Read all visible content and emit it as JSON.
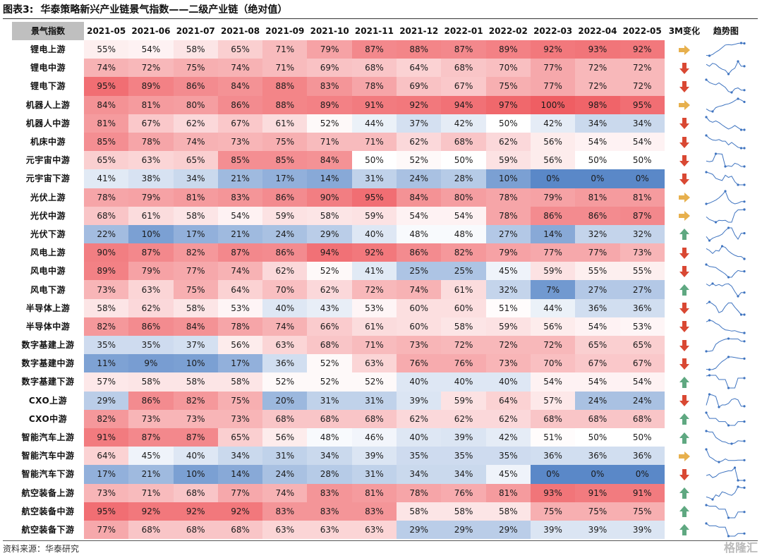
{
  "title": {
    "figure_label": "图表3:",
    "text": "华泰策略新兴产业链景气指数——二级产业链（绝对值）"
  },
  "source_text": "资料来源：华泰研究",
  "watermark": "格隆汇",
  "colors": {
    "high": "#ef5e63",
    "mid": "#ffffff",
    "low": "#5a88c8",
    "arrow_up": "#5fa881",
    "arrow_down": "#d94833",
    "arrow_flat": "#e7b04d",
    "trend_line": "#3f74c0"
  },
  "chart_data": {
    "type": "heatmap",
    "header": {
      "category": "景气指数",
      "change": "3M变化",
      "trend": "趋势图"
    },
    "columns": [
      "2021-05",
      "2021-06",
      "2021-07",
      "2021-08",
      "2021-09",
      "2021-10",
      "2021-11",
      "2021-12",
      "2022-01",
      "2022-02",
      "2022-03",
      "2022-04",
      "2022-05"
    ],
    "rows": [
      {
        "name": "锂电上游",
        "values": [
          55,
          54,
          58,
          65,
          71,
          79,
          87,
          88,
          87,
          89,
          92,
          93,
          92
        ],
        "change": "flat"
      },
      {
        "name": "锂电中游",
        "values": [
          74,
          72,
          75,
          74,
          71,
          69,
          68,
          64,
          68,
          70,
          77,
          72,
          72
        ],
        "change": "down"
      },
      {
        "name": "锂电下游",
        "values": [
          95,
          89,
          86,
          84,
          88,
          83,
          78,
          69,
          67,
          75,
          77,
          72,
          72
        ],
        "change": "down"
      },
      {
        "name": "机器人上游",
        "values": [
          84,
          81,
          80,
          86,
          88,
          89,
          91,
          92,
          94,
          97,
          100,
          98,
          95
        ],
        "change": "flat"
      },
      {
        "name": "机器人中游",
        "values": [
          81,
          67,
          62,
          67,
          61,
          52,
          44,
          37,
          42,
          50,
          42,
          34,
          34
        ],
        "change": "down"
      },
      {
        "name": "机床中游",
        "values": [
          85,
          78,
          74,
          73,
          75,
          71,
          71,
          62,
          68,
          62,
          56,
          54,
          54
        ],
        "change": "down"
      },
      {
        "name": "元宇宙中游",
        "values": [
          65,
          63,
          65,
          85,
          85,
          84,
          50,
          52,
          50,
          59,
          56,
          50,
          50
        ],
        "change": "down"
      },
      {
        "name": "元宇宙下游",
        "values": [
          41,
          38,
          34,
          21,
          17,
          14,
          31,
          24,
          28,
          10,
          0,
          0,
          0
        ],
        "change": "down"
      },
      {
        "name": "光伏上游",
        "values": [
          78,
          79,
          81,
          83,
          86,
          90,
          95,
          84,
          80,
          78,
          79,
          81,
          81
        ],
        "change": "flat"
      },
      {
        "name": "光伏中游",
        "values": [
          68,
          61,
          58,
          54,
          59,
          58,
          59,
          54,
          54,
          78,
          86,
          86,
          87
        ],
        "change": "flat"
      },
      {
        "name": "光伏下游",
        "values": [
          22,
          10,
          17,
          21,
          24,
          29,
          40,
          48,
          48,
          27,
          14,
          32,
          32
        ],
        "change": "up"
      },
      {
        "name": "风电上游",
        "values": [
          90,
          87,
          82,
          87,
          86,
          94,
          92,
          86,
          82,
          79,
          77,
          77,
          73
        ],
        "change": "down"
      },
      {
        "name": "风电中游",
        "values": [
          89,
          79,
          77,
          74,
          62,
          52,
          41,
          25,
          25,
          45,
          59,
          55,
          55
        ],
        "change": "down"
      },
      {
        "name": "风电下游",
        "values": [
          73,
          63,
          75,
          64,
          70,
          62,
          72,
          74,
          61,
          32,
          7,
          27,
          27
        ],
        "change": "up"
      },
      {
        "name": "半导体上游",
        "values": [
          58,
          62,
          58,
          53,
          40,
          43,
          53,
          60,
          60,
          51,
          44,
          36,
          36
        ],
        "change": "down"
      },
      {
        "name": "半导体中游",
        "values": [
          82,
          86,
          84,
          78,
          74,
          66,
          61,
          60,
          58,
          59,
          56,
          54,
          53
        ],
        "change": "down"
      },
      {
        "name": "数字基建上游",
        "values": [
          35,
          35,
          37,
          56,
          63,
          68,
          71,
          73,
          72,
          72,
          72,
          65,
          65
        ],
        "change": "down"
      },
      {
        "name": "数字基建中游",
        "values": [
          11,
          9,
          10,
          17,
          36,
          52,
          63,
          76,
          76,
          73,
          70,
          67,
          67
        ],
        "change": "down"
      },
      {
        "name": "数字基建下游",
        "values": [
          57,
          58,
          58,
          58,
          52,
          52,
          52,
          40,
          40,
          40,
          54,
          54,
          54
        ],
        "change": "up"
      },
      {
        "name": "CXO上游",
        "values": [
          29,
          86,
          82,
          75,
          20,
          31,
          31,
          39,
          59,
          64,
          57,
          24,
          24
        ],
        "change": "down"
      },
      {
        "name": "CXO中游",
        "values": [
          82,
          73,
          73,
          73,
          68,
          68,
          68,
          62,
          62,
          62,
          68,
          68,
          68
        ],
        "change": "up"
      },
      {
        "name": "智能汽车上游",
        "values": [
          91,
          87,
          87,
          65,
          56,
          48,
          46,
          40,
          39,
          42,
          51,
          50,
          50
        ],
        "change": "up"
      },
      {
        "name": "智能汽车中游",
        "values": [
          64,
          45,
          40,
          34,
          31,
          34,
          39,
          35,
          35,
          35,
          36,
          36,
          36
        ],
        "change": "flat"
      },
      {
        "name": "智能汽车下游",
        "values": [
          17,
          21,
          10,
          14,
          24,
          28,
          31,
          34,
          34,
          45,
          0,
          0,
          0
        ],
        "change": "down"
      },
      {
        "name": "航空装备上游",
        "values": [
          73,
          71,
          68,
          77,
          74,
          83,
          81,
          78,
          76,
          81,
          93,
          91,
          91
        ],
        "change": "up"
      },
      {
        "name": "航空装备中游",
        "values": [
          95,
          92,
          92,
          92,
          83,
          83,
          83,
          58,
          58,
          58,
          75,
          75,
          75
        ],
        "change": "up"
      },
      {
        "name": "航空装备下游",
        "values": [
          77,
          68,
          68,
          68,
          63,
          63,
          63,
          29,
          29,
          29,
          39,
          39,
          39
        ],
        "change": "up"
      }
    ],
    "value_unit": "%",
    "color_scale": {
      "min": 0,
      "center": 50,
      "max": 100
    }
  }
}
